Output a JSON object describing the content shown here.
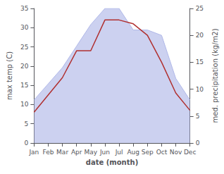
{
  "chart_data": {
    "type": "line",
    "xlabel": "date (month)",
    "ylabel": "max temp (C)",
    "y2label": "med. precipitation (kg/m2)",
    "categories": [
      "Jan",
      "Feb",
      "Mar",
      "Apr",
      "May",
      "Jun",
      "Jul",
      "Aug",
      "Sep",
      "Oct",
      "Nov",
      "Dec"
    ],
    "series": [
      {
        "type": "area",
        "color": "#b0b8e8",
        "axis": "y2",
        "values": [
          8,
          11,
          14,
          18,
          22,
          25,
          25,
          21,
          21,
          20,
          12,
          8
        ]
      },
      {
        "type": "line",
        "color": "#b03030",
        "values": [
          8,
          12.5,
          17,
          24,
          24,
          32,
          32,
          31,
          28,
          21,
          13,
          8.5
        ]
      }
    ],
    "ylim": [
      0,
      35
    ],
    "yticks": [
      0,
      5,
      10,
      15,
      20,
      25,
      30,
      35
    ],
    "y2lim": [
      0,
      25
    ],
    "y2ticks": [
      0,
      5,
      10,
      15,
      20,
      25
    ],
    "grid": false
  }
}
